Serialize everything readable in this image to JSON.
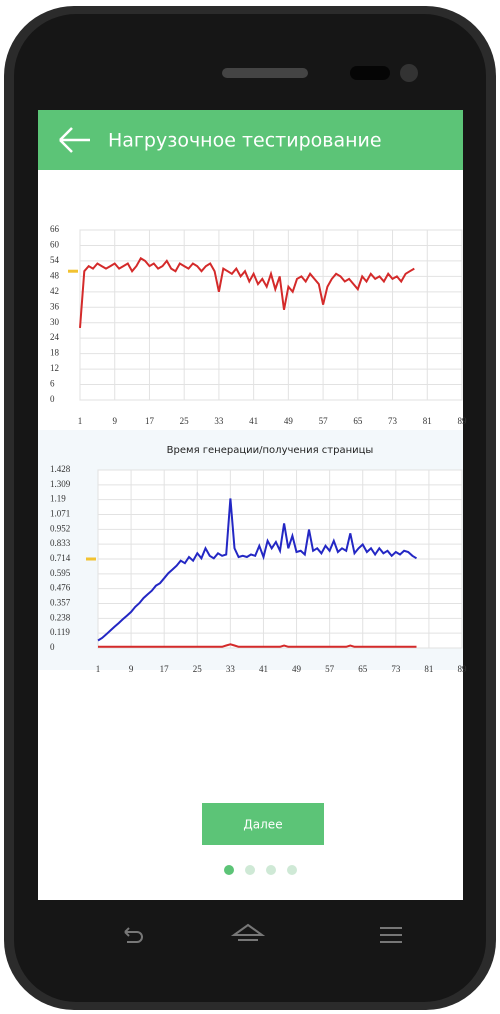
{
  "header": {
    "title": "Нагрузочное тестирование"
  },
  "button": {
    "label": "Далее"
  },
  "chart_data": [
    {
      "type": "line",
      "x": [
        1,
        2,
        3,
        4,
        5,
        6,
        7,
        8,
        9,
        10,
        11,
        12,
        13,
        14,
        15,
        16,
        17,
        18,
        19,
        20,
        21,
        22,
        23,
        24,
        25,
        26,
        27,
        28,
        29,
        30,
        31,
        32,
        33,
        34,
        35,
        36,
        37,
        38,
        39,
        40,
        41,
        42,
        43,
        44,
        45,
        46,
        47,
        48,
        49,
        50,
        51,
        52,
        53,
        54,
        55,
        56,
        57,
        58,
        59,
        60,
        61,
        62,
        63,
        64,
        65,
        66,
        67,
        68,
        69,
        70,
        71,
        72,
        73,
        74,
        75,
        76,
        77,
        78
      ],
      "series": [
        {
          "color": "#d42a2a",
          "values": [
            28,
            50,
            52,
            51,
            53,
            52,
            51,
            52,
            53,
            51,
            52,
            53,
            50,
            52,
            55,
            54,
            52,
            53,
            51,
            52,
            54,
            51,
            50,
            53,
            52,
            51,
            53,
            52,
            50,
            52,
            53,
            50,
            42,
            51,
            50,
            49,
            51,
            48,
            50,
            46,
            49,
            45,
            47,
            44,
            49,
            43,
            48,
            35,
            44,
            42,
            47,
            48,
            46,
            49,
            47,
            45,
            37,
            44,
            47,
            49,
            48,
            46,
            47,
            45,
            43,
            48,
            46,
            49,
            47,
            48,
            46,
            49,
            47,
            48,
            46,
            49,
            50,
            51
          ]
        }
      ],
      "xlim": [
        1,
        89
      ],
      "xticks": [
        1,
        9,
        17,
        25,
        33,
        41,
        49,
        57,
        65,
        73,
        81,
        89
      ],
      "ylim": [
        0,
        66
      ],
      "yticks": [
        0,
        6,
        12,
        18,
        24,
        30,
        36,
        42,
        48,
        54,
        60,
        66
      ],
      "marker_value": 50,
      "marker_color": "#f2c230",
      "grid": true
    },
    {
      "type": "line",
      "title": "Время генерации/получения страницы",
      "x": [
        1,
        2,
        3,
        4,
        5,
        6,
        7,
        8,
        9,
        10,
        11,
        12,
        13,
        14,
        15,
        16,
        17,
        18,
        19,
        20,
        21,
        22,
        23,
        24,
        25,
        26,
        27,
        28,
        29,
        30,
        31,
        32,
        33,
        34,
        35,
        36,
        37,
        38,
        39,
        40,
        41,
        42,
        43,
        44,
        45,
        46,
        47,
        48,
        49,
        50,
        51,
        52,
        53,
        54,
        55,
        56,
        57,
        58,
        59,
        60,
        61,
        62,
        63,
        64,
        65,
        66,
        67,
        68,
        69,
        70,
        71,
        72,
        73,
        74,
        75,
        76,
        77,
        78
      ],
      "series": [
        {
          "color": "#2327c4",
          "values": [
            0.06,
            0.08,
            0.11,
            0.14,
            0.17,
            0.2,
            0.23,
            0.26,
            0.29,
            0.33,
            0.36,
            0.4,
            0.43,
            0.46,
            0.5,
            0.52,
            0.56,
            0.6,
            0.63,
            0.66,
            0.7,
            0.68,
            0.73,
            0.7,
            0.76,
            0.72,
            0.8,
            0.74,
            0.72,
            0.76,
            0.74,
            0.75,
            1.2,
            0.8,
            0.73,
            0.74,
            0.73,
            0.75,
            0.74,
            0.82,
            0.73,
            0.86,
            0.8,
            0.85,
            0.78,
            1.0,
            0.8,
            0.9,
            0.77,
            0.78,
            0.75,
            0.95,
            0.78,
            0.8,
            0.76,
            0.82,
            0.78,
            0.86,
            0.77,
            0.8,
            0.78,
            0.92,
            0.76,
            0.8,
            0.83,
            0.77,
            0.8,
            0.75,
            0.8,
            0.76,
            0.78,
            0.74,
            0.77,
            0.75,
            0.78,
            0.77,
            0.74,
            0.72
          ]
        },
        {
          "color": "#d42a2a",
          "values": [
            0.01,
            0.01,
            0.01,
            0.01,
            0.01,
            0.01,
            0.01,
            0.01,
            0.01,
            0.01,
            0.01,
            0.01,
            0.01,
            0.01,
            0.01,
            0.01,
            0.01,
            0.01,
            0.01,
            0.01,
            0.01,
            0.01,
            0.01,
            0.01,
            0.01,
            0.01,
            0.01,
            0.01,
            0.01,
            0.01,
            0.01,
            0.02,
            0.03,
            0.02,
            0.01,
            0.01,
            0.01,
            0.01,
            0.01,
            0.01,
            0.01,
            0.01,
            0.01,
            0.01,
            0.01,
            0.02,
            0.01,
            0.01,
            0.01,
            0.01,
            0.01,
            0.01,
            0.01,
            0.01,
            0.01,
            0.01,
            0.01,
            0.01,
            0.01,
            0.01,
            0.01,
            0.02,
            0.01,
            0.01,
            0.01,
            0.01,
            0.01,
            0.01,
            0.01,
            0.01,
            0.01,
            0.01,
            0.01,
            0.01,
            0.01,
            0.01,
            0.01,
            0.01
          ]
        }
      ],
      "xlim": [
        1,
        89
      ],
      "xticks": [
        1,
        9,
        17,
        25,
        33,
        41,
        49,
        57,
        65,
        73,
        81,
        89
      ],
      "ylim": [
        0,
        1.428
      ],
      "yticks": [
        0,
        0.119,
        0.238,
        0.357,
        0.476,
        0.595,
        0.714,
        0.833,
        0.952,
        1.071,
        1.19,
        1.309,
        1.428
      ],
      "marker_value": 0.714,
      "marker_color": "#f2c230",
      "grid": true
    }
  ]
}
